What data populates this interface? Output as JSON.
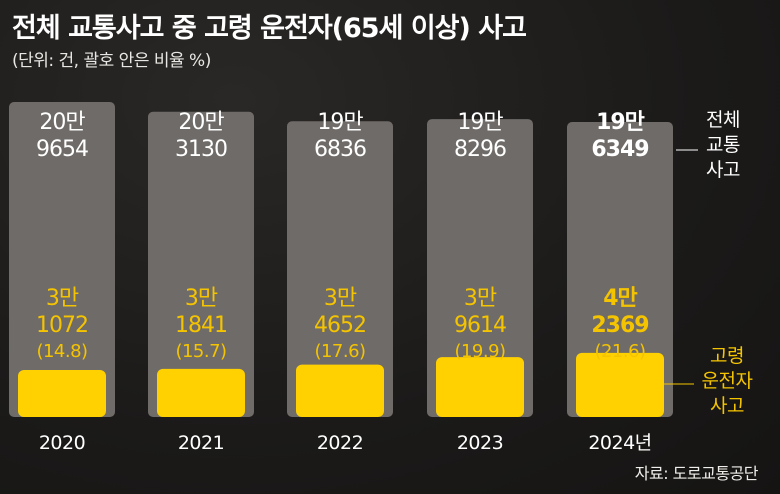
{
  "title": "전체 교통사고 중 고령 운전자(65세 이상) 사고",
  "subtitle": "(단위: 건, 괄호 안은 비율 %)",
  "source": "자료: 도로교통공단",
  "colors": {
    "total_bar": "#6f6b68",
    "elderly_bar": "#ffd100",
    "elderly_text": "#f5c400",
    "text": "#ffffff"
  },
  "chart_data": {
    "type": "bar",
    "categories": [
      "2020",
      "2021",
      "2022",
      "2023",
      "2024"
    ],
    "category_labels": [
      "2020",
      "2021",
      "2022",
      "2023",
      "2024년"
    ],
    "series": [
      {
        "name": "전체 교통사고",
        "legend_lines": [
          "전체",
          "교통",
          "사고"
        ],
        "values": [
          209654,
          203130,
          196836,
          198296,
          196349
        ],
        "label_lines": [
          [
            "20만",
            "9654"
          ],
          [
            "20만",
            "3130"
          ],
          [
            "19만",
            "6836"
          ],
          [
            "19만",
            "8296"
          ],
          [
            "19만",
            "6349"
          ]
        ]
      },
      {
        "name": "고령 운전자 사고",
        "legend_lines": [
          "고령",
          "운전자",
          "사고"
        ],
        "values": [
          31072,
          31841,
          34652,
          39614,
          42369
        ],
        "label_lines": [
          [
            "3만",
            "1072"
          ],
          [
            "3만",
            "1841"
          ],
          [
            "3만",
            "4652"
          ],
          [
            "3만",
            "9614"
          ],
          [
            "4만",
            "2369"
          ]
        ],
        "percent_labels": [
          "(14.8)",
          "(15.7)",
          "(17.6)",
          "(19.9)",
          "(21.6)"
        ],
        "percent": [
          14.8,
          15.7,
          17.6,
          19.9,
          21.6
        ]
      }
    ],
    "highlight_index": 4
  }
}
